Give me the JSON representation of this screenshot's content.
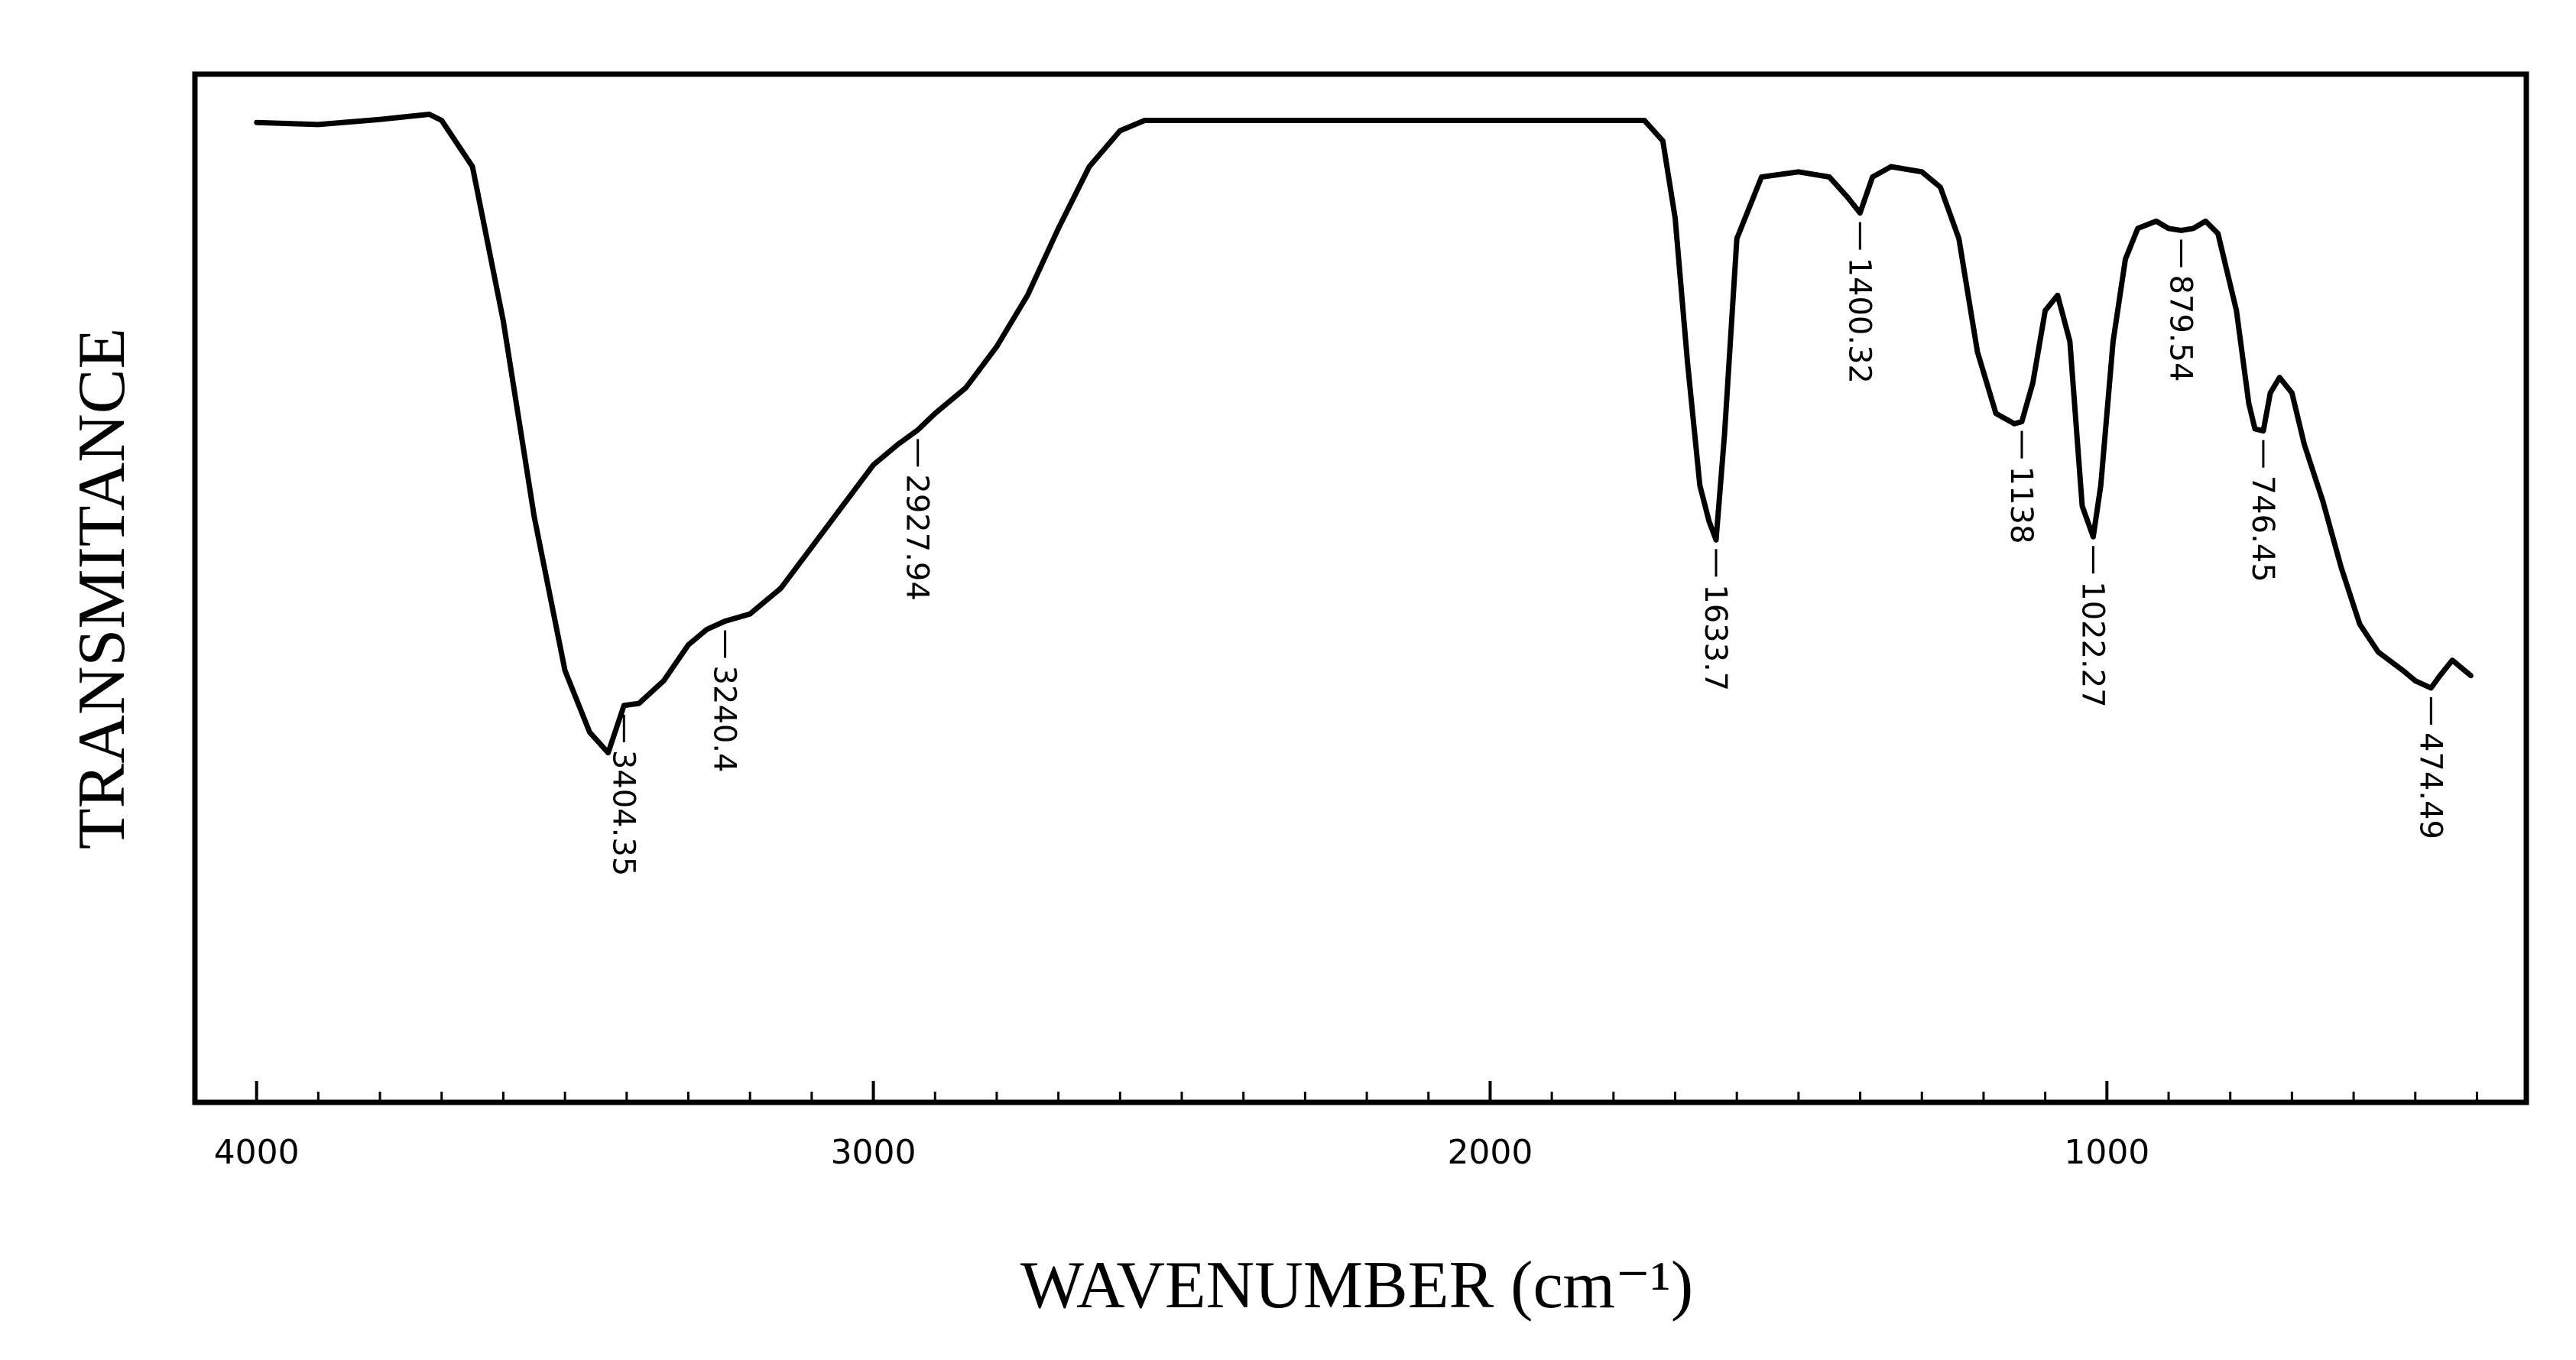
{
  "chart_data": {
    "type": "line",
    "title": "",
    "xlabel": "WAVENUMBER (cm⁻¹)",
    "ylabel": "TRANSMITANCE",
    "xlim": [
      4100,
      320
    ],
    "ylim": [
      0,
      100
    ],
    "x_reversed": true,
    "grid": false,
    "xticks_major": [
      4000,
      3000,
      2000,
      1000
    ],
    "xtick_labels": [
      "4000",
      "3000",
      "2000",
      "1000"
    ],
    "xticks_minor": [
      3900,
      3800,
      3700,
      3600,
      3500,
      3400,
      3300,
      3200,
      3100,
      2900,
      2800,
      2700,
      2600,
      2500,
      2400,
      2300,
      2200,
      2100,
      1900,
      1800,
      1700,
      1600,
      1500,
      1400,
      1300,
      1200,
      1100,
      900,
      800,
      700,
      600,
      500,
      400
    ],
    "series": [
      {
        "name": "FTIR spectrum",
        "points": [
          [
            4000,
            95.3
          ],
          [
            3900,
            95.1
          ],
          [
            3800,
            95.6
          ],
          [
            3720,
            96.1
          ],
          [
            3700,
            95.5
          ],
          [
            3650,
            91.0
          ],
          [
            3600,
            76.0
          ],
          [
            3550,
            57.0
          ],
          [
            3500,
            42.0
          ],
          [
            3460,
            36.0
          ],
          [
            3430,
            34.0
          ],
          [
            3404.35,
            38.6
          ],
          [
            3380,
            38.8
          ],
          [
            3340,
            41.0
          ],
          [
            3300,
            44.5
          ],
          [
            3270,
            46.0
          ],
          [
            3240.4,
            46.8
          ],
          [
            3200,
            47.5
          ],
          [
            3150,
            50.0
          ],
          [
            3100,
            54.0
          ],
          [
            3050,
            58.0
          ],
          [
            3000,
            62.0
          ],
          [
            2960,
            64.0
          ],
          [
            2927.94,
            65.4
          ],
          [
            2900,
            67.0
          ],
          [
            2850,
            69.5
          ],
          [
            2800,
            73.5
          ],
          [
            2750,
            78.5
          ],
          [
            2700,
            85.0
          ],
          [
            2650,
            91.0
          ],
          [
            2600,
            94.5
          ],
          [
            2560,
            95.5
          ],
          [
            2500,
            95.5
          ],
          [
            2000,
            95.5
          ],
          [
            1750,
            95.5
          ],
          [
            1720,
            93.5
          ],
          [
            1700,
            86.0
          ],
          [
            1680,
            72.0
          ],
          [
            1660,
            60.0
          ],
          [
            1645,
            56.5
          ],
          [
            1633.7,
            54.7
          ],
          [
            1620,
            65.0
          ],
          [
            1600,
            84.0
          ],
          [
            1560,
            90.0
          ],
          [
            1500,
            90.5
          ],
          [
            1450,
            90.0
          ],
          [
            1420,
            88.0
          ],
          [
            1400.32,
            86.5
          ],
          [
            1380,
            90.0
          ],
          [
            1350,
            91.0
          ],
          [
            1300,
            90.5
          ],
          [
            1270,
            89.0
          ],
          [
            1240,
            84.0
          ],
          [
            1210,
            73.0
          ],
          [
            1180,
            67.0
          ],
          [
            1150,
            66.0
          ],
          [
            1138,
            66.2
          ],
          [
            1120,
            70.0
          ],
          [
            1100,
            77.0
          ],
          [
            1080,
            78.5
          ],
          [
            1060,
            74.0
          ],
          [
            1040,
            58.0
          ],
          [
            1022.27,
            55.0
          ],
          [
            1010,
            60.0
          ],
          [
            990,
            74.0
          ],
          [
            970,
            82.0
          ],
          [
            950,
            85.0
          ],
          [
            920,
            85.7
          ],
          [
            900,
            85.0
          ],
          [
            879.54,
            84.8
          ],
          [
            860,
            85.0
          ],
          [
            840,
            85.7
          ],
          [
            820,
            84.5
          ],
          [
            790,
            77.0
          ],
          [
            770,
            68.0
          ],
          [
            760,
            65.5
          ],
          [
            746.45,
            65.3
          ],
          [
            735,
            69.0
          ],
          [
            720,
            70.5
          ],
          [
            700,
            69.0
          ],
          [
            680,
            64.0
          ],
          [
            650,
            58.5
          ],
          [
            620,
            52.0
          ],
          [
            590,
            46.5
          ],
          [
            560,
            43.8
          ],
          [
            520,
            42.0
          ],
          [
            500,
            41.0
          ],
          [
            474.49,
            40.3
          ],
          [
            460,
            41.5
          ],
          [
            440,
            43.0
          ],
          [
            420,
            42.0
          ],
          [
            410,
            41.5
          ]
        ]
      }
    ],
    "peak_labels": [
      {
        "wavenumber": 3404.35,
        "text": "3404.35"
      },
      {
        "wavenumber": 3240.4,
        "text": "3240.4"
      },
      {
        "wavenumber": 2927.94,
        "text": "2927.94"
      },
      {
        "wavenumber": 1633.7,
        "text": "1633.7"
      },
      {
        "wavenumber": 1400.32,
        "text": "1400.32"
      },
      {
        "wavenumber": 1138,
        "text": "1138"
      },
      {
        "wavenumber": 1022.27,
        "text": "1022.27"
      },
      {
        "wavenumber": 879.54,
        "text": "879.54"
      },
      {
        "wavenumber": 746.45,
        "text": "746.45"
      },
      {
        "wavenumber": 474.49,
        "text": "474.49"
      }
    ]
  }
}
